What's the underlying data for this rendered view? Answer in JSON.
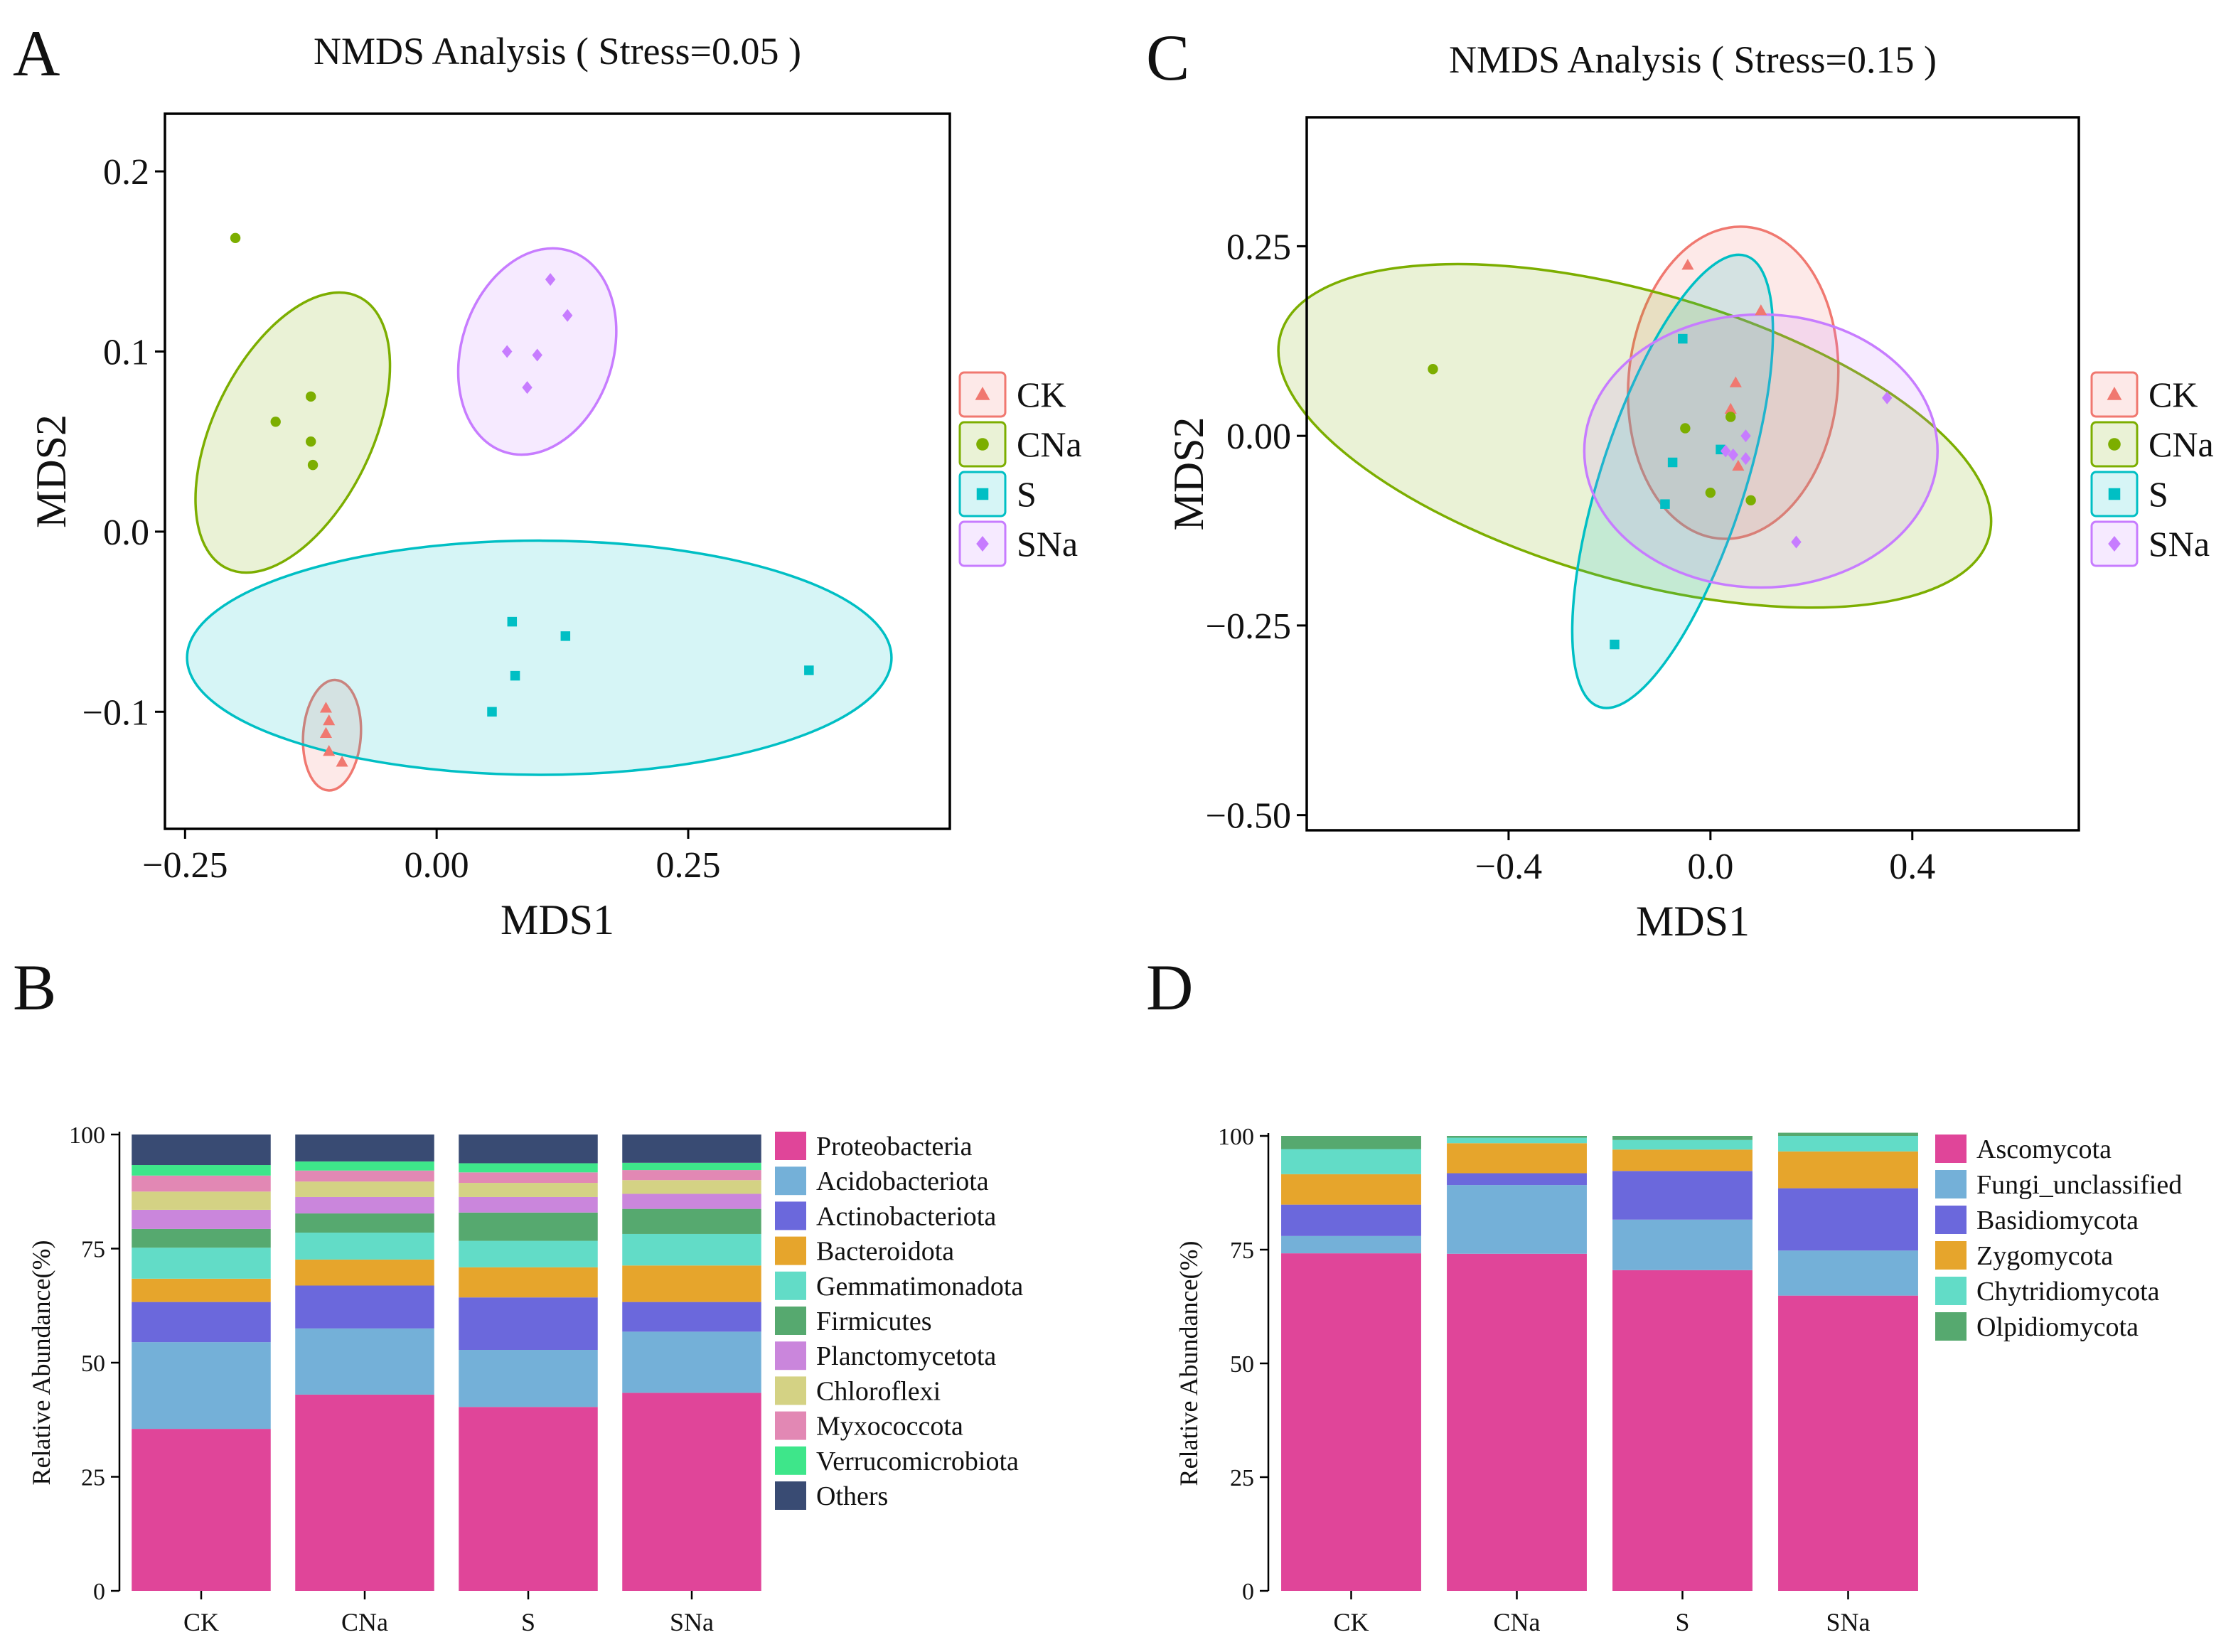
{
  "panel_letters": [
    "A",
    "B",
    "C",
    "D"
  ],
  "colors": {
    "CK": "#f07870",
    "CNa": "#7cae00",
    "S": "#00bfc4",
    "SNa": "#c77cff",
    "axis": "#000000"
  },
  "chart_data": [
    {
      "panel": "A",
      "type": "scatter",
      "title": "NMDS Analysis ( Stress=0.05 )",
      "xlabel": "MDS1",
      "ylabel": "MDS2",
      "xlim": [
        -0.27,
        0.51
      ],
      "ylim": [
        -0.165,
        0.232
      ],
      "xticks": [
        -0.25,
        0.0,
        0.25
      ],
      "xtick_labels": [
        "−0.25",
        "0.00",
        "0.25"
      ],
      "yticks": [
        -0.1,
        0.0,
        0.1,
        0.2
      ],
      "ytick_labels": [
        "−0.1",
        "0.0",
        "0.1",
        "0.2"
      ],
      "legend": [
        "CK",
        "CNa",
        "S",
        "SNa"
      ],
      "series": [
        {
          "name": "CK",
          "marker": "triangle",
          "points": [
            [
              -0.11,
              -0.098
            ],
            [
              -0.107,
              -0.105
            ],
            [
              -0.11,
              -0.112
            ],
            [
              -0.107,
              -0.122
            ],
            [
              -0.094,
              -0.128
            ]
          ],
          "ellipse": {
            "cx": -0.104,
            "cy": -0.113,
            "rx": 0.055,
            "ry": 0.016,
            "angle": 86
          }
        },
        {
          "name": "CNa",
          "marker": "circle",
          "points": [
            [
              -0.2,
              0.163
            ],
            [
              -0.16,
              0.061
            ],
            [
              -0.125,
              0.075
            ],
            [
              -0.125,
              0.05
            ],
            [
              -0.123,
              0.037
            ]
          ],
          "ellipse": {
            "cx": -0.143,
            "cy": 0.055,
            "rx": 0.15,
            "ry": 0.044,
            "angle": 64
          }
        },
        {
          "name": "S",
          "marker": "square",
          "points": [
            [
              0.075,
              -0.05
            ],
            [
              0.128,
              -0.058
            ],
            [
              0.078,
              -0.08
            ],
            [
              0.055,
              -0.1
            ],
            [
              0.37,
              -0.077
            ]
          ],
          "ellipse": {
            "cx": 0.102,
            "cy": -0.07,
            "rx": 0.35,
            "ry": 0.065,
            "angle": 0
          }
        },
        {
          "name": "SNa",
          "marker": "diamond",
          "points": [
            [
              0.113,
              0.14
            ],
            [
              0.13,
              0.12
            ],
            [
              0.07,
              0.1
            ],
            [
              0.1,
              0.098
            ],
            [
              0.09,
              0.08
            ]
          ],
          "ellipse": {
            "cx": 0.1,
            "cy": 0.1,
            "rx": 0.105,
            "ry": 0.042,
            "angle": 72
          }
        }
      ]
    },
    {
      "panel": "C",
      "type": "scatter",
      "title": "NMDS Analysis ( Stress=0.15 )",
      "xlabel": "MDS1",
      "ylabel": "MDS2",
      "xlim": [
        -0.8,
        0.73
      ],
      "ylim": [
        -0.52,
        0.42
      ],
      "xticks": [
        -0.4,
        0.0,
        0.4
      ],
      "xtick_labels": [
        "−0.4",
        "0.0",
        "0.4"
      ],
      "yticks": [
        -0.5,
        -0.25,
        0.0,
        0.25
      ],
      "ytick_labels": [
        "−0.50",
        "−0.25",
        "0.00",
        "0.25"
      ],
      "legend": [
        "CK",
        "CNa",
        "S",
        "SNa"
      ],
      "series": [
        {
          "name": "CK",
          "marker": "triangle",
          "points": [
            [
              -0.045,
              0.225
            ],
            [
              0.1,
              0.165
            ],
            [
              0.05,
              0.07
            ],
            [
              0.04,
              0.035
            ],
            [
              0.055,
              -0.04
            ]
          ],
          "ellipse": {
            "cx": 0.045,
            "cy": 0.07,
            "rx": 0.31,
            "ry": 0.138,
            "angle": 85
          }
        },
        {
          "name": "CNa",
          "marker": "circle",
          "points": [
            [
              -0.55,
              0.088
            ],
            [
              -0.05,
              0.01
            ],
            [
              0.04,
              0.025
            ],
            [
              0.0,
              -0.075
            ],
            [
              0.08,
              -0.085
            ]
          ],
          "ellipse": {
            "cx": -0.15,
            "cy": 0.0,
            "rx": 0.73,
            "ry": 0.19,
            "angle": -16
          }
        },
        {
          "name": "S",
          "marker": "square",
          "points": [
            [
              -0.055,
              0.128
            ],
            [
              -0.075,
              -0.035
            ],
            [
              -0.09,
              -0.09
            ],
            [
              0.02,
              -0.018
            ],
            [
              -0.19,
              -0.275
            ]
          ],
          "ellipse": {
            "cx": -0.075,
            "cy": -0.06,
            "rx": 0.47,
            "ry": 0.095,
            "angle": 72
          }
        },
        {
          "name": "SNa",
          "marker": "diamond",
          "points": [
            [
              0.03,
              -0.02
            ],
            [
              0.045,
              -0.025
            ],
            [
              0.07,
              0.0
            ],
            [
              0.07,
              -0.03
            ],
            [
              0.35,
              0.05
            ],
            [
              0.17,
              -0.14
            ]
          ],
          "ellipse": {
            "cx": 0.1,
            "cy": -0.02,
            "rx": 0.35,
            "ry": 0.18,
            "angle": 0
          }
        }
      ]
    },
    {
      "panel": "B",
      "type": "bar",
      "stacked": true,
      "ylabel": "Relative Abundance(%)",
      "ylim": [
        0,
        100
      ],
      "yticks": [
        0,
        25,
        50,
        75,
        100
      ],
      "categories": [
        "CK",
        "CNa",
        "S",
        "SNa"
      ],
      "series": [
        {
          "name": "Proteobacteria",
          "color": "#e04599",
          "values": [
            35.5,
            43.0,
            40.3,
            43.4
          ]
        },
        {
          "name": "Acidobacteriota",
          "color": "#74b0d8",
          "values": [
            19.0,
            14.5,
            12.5,
            13.4
          ]
        },
        {
          "name": "Actinobacteriota",
          "color": "#6b68dc",
          "values": [
            8.8,
            9.4,
            11.5,
            6.5
          ]
        },
        {
          "name": "Bacteroidota",
          "color": "#e6a52c",
          "values": [
            5.1,
            5.7,
            6.6,
            8.0
          ]
        },
        {
          "name": "Gemmatimonadota",
          "color": "#62dcc7",
          "values": [
            6.8,
            5.9,
            5.8,
            6.9
          ]
        },
        {
          "name": "Firmicutes",
          "color": "#56a96f",
          "values": [
            4.1,
            4.2,
            6.2,
            5.5
          ]
        },
        {
          "name": "Planctomycetota",
          "color": "#ca86dc",
          "values": [
            4.2,
            3.6,
            3.4,
            3.3
          ]
        },
        {
          "name": "Chloroflexi",
          "color": "#d4d284",
          "values": [
            4.0,
            3.4,
            3.1,
            3.0
          ]
        },
        {
          "name": "Myxococcota",
          "color": "#e288b4",
          "values": [
            3.5,
            2.4,
            2.3,
            2.2
          ]
        },
        {
          "name": "Verrucomicrobiota",
          "color": "#3ee68a",
          "values": [
            2.3,
            2.0,
            2.0,
            1.6
          ]
        },
        {
          "name": "Others",
          "color": "#394b73",
          "values": [
            6.7,
            5.9,
            6.3,
            6.2
          ]
        }
      ]
    },
    {
      "panel": "D",
      "type": "bar",
      "stacked": true,
      "ylabel": "Relative Abundance(%)",
      "ylim": [
        0,
        100
      ],
      "yticks": [
        0,
        25,
        50,
        75,
        100
      ],
      "categories": [
        "CK",
        "CNa",
        "S",
        "SNa"
      ],
      "series": [
        {
          "name": "Ascomycota",
          "color": "#e04599",
          "values": [
            74.2,
            74.1,
            70.5,
            64.9
          ]
        },
        {
          "name": "Fungi_unclassified",
          "color": "#74b0d8",
          "values": [
            3.8,
            15.1,
            11.1,
            9.9
          ]
        },
        {
          "name": "Basidiomycota",
          "color": "#6b68dc",
          "values": [
            6.9,
            2.6,
            10.7,
            13.7
          ]
        },
        {
          "name": "Zygomycota",
          "color": "#e6a52c",
          "values": [
            6.7,
            6.6,
            4.7,
            8.1
          ]
        },
        {
          "name": "Chytridiomycota",
          "color": "#62dcc7",
          "values": [
            5.5,
            1.2,
            2.1,
            3.4
          ]
        },
        {
          "name": "Olpidiomycota",
          "color": "#56a96f",
          "values": [
            2.9,
            0.4,
            0.9,
            0.7
          ]
        }
      ]
    }
  ]
}
